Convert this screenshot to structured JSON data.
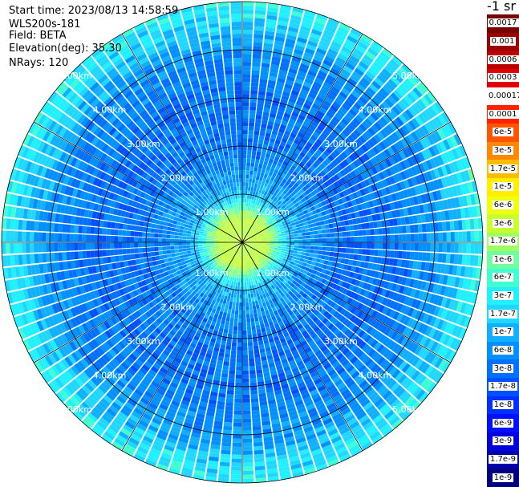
{
  "info": {
    "start_time": "Start time: 2023/08/13 14:58:59",
    "instrument": "WLS200s-181",
    "field": "Field: BETA",
    "elevation": "Elevation(deg): 35.30",
    "nrays": "NRays: 120"
  },
  "colorbar": {
    "title": "-1 sr",
    "labels": [
      "0.0017",
      "0.001",
      "0.0006",
      "0.0003",
      "0.00017",
      "0.0001",
      "6e-5",
      "3e-5",
      "1.7e-5",
      "1e-5",
      "6e-6",
      "3e-6",
      "1.7e-6",
      "1e-6",
      "6e-7",
      "3e-7",
      "1.7e-7",
      "1e-7",
      "6e-8",
      "3e-8",
      "1.7e-8",
      "1e-8",
      "6e-9",
      "3e-9",
      "1.7e-9",
      "1e-9"
    ],
    "colors": [
      "#7a0000",
      "#9a0000",
      "#bb0000",
      "#e00000",
      "#ffffff",
      "#ff2200",
      "#ff5500",
      "#ff8800",
      "#ffbb00",
      "#ffee00",
      "#eeff10",
      "#c8ff30",
      "#a0ff60",
      "#70ffa0",
      "#40ffd0",
      "#20f0ff",
      "#20d8ff",
      "#10b0ff",
      "#0090ff",
      "#0070ff",
      "#0050ff",
      "#0030ff",
      "#0010ff",
      "#0000dd",
      "#0000aa",
      "#000080"
    ]
  },
  "chart_data": {
    "type": "heatmap",
    "projection": "polar PPI",
    "field": "BETA",
    "units": "-1 sr",
    "n_rays": 120,
    "elevation_deg": 35.3,
    "range_rings": [
      "1.00km",
      "2.00km",
      "3.00km",
      "4.00km",
      "5.00km"
    ],
    "range_rings_km": [
      1,
      2,
      3,
      4,
      5
    ],
    "max_range_km": 5,
    "radial_gridlines_deg": [
      0,
      30,
      60,
      90,
      120,
      150,
      180,
      210,
      240,
      270,
      300,
      330
    ],
    "range_profile": [
      {
        "range_km": 0.5,
        "value": "3e-6"
      },
      {
        "range_km": 1.0,
        "value": "1e-7"
      },
      {
        "range_km": 2.0,
        "value": "3e-8"
      },
      {
        "range_km": 3.0,
        "value": "3e-8"
      },
      {
        "range_km": 4.0,
        "value": "6e-8"
      },
      {
        "range_km": 4.6,
        "value": "1.7e-7"
      },
      {
        "range_km": 5.0,
        "value": "3e-7"
      }
    ]
  }
}
